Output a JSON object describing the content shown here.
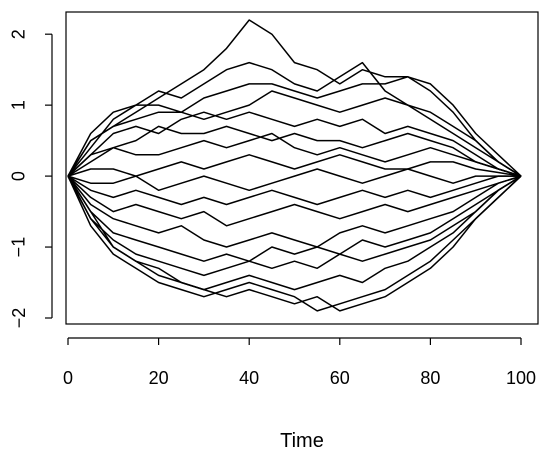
{
  "chart_data": {
    "type": "line",
    "title": "",
    "xlabel": "Time",
    "ylabel": "",
    "xlim": [
      0,
      100
    ],
    "ylim": [
      -2,
      2.2
    ],
    "x_ticks": [
      0,
      20,
      40,
      60,
      80,
      100
    ],
    "y_ticks": [
      -2,
      -1,
      0,
      1,
      2
    ],
    "grid": false,
    "line_color": "#000000",
    "x": [
      0,
      5,
      10,
      15,
      20,
      25,
      30,
      35,
      40,
      45,
      50,
      55,
      60,
      65,
      70,
      75,
      80,
      85,
      90,
      95,
      100
    ],
    "series": [
      {
        "values": [
          0,
          0.5,
          0.7,
          0.9,
          1.1,
          1.3,
          1.5,
          1.8,
          2.2,
          2.0,
          1.6,
          1.5,
          1.3,
          1.5,
          1.4,
          1.4,
          1.3,
          1.0,
          0.6,
          0.3,
          0
        ]
      },
      {
        "values": [
          0,
          0.6,
          0.9,
          1.0,
          1.2,
          1.1,
          1.3,
          1.5,
          1.6,
          1.5,
          1.3,
          1.2,
          1.4,
          1.6,
          1.2,
          1.0,
          0.9,
          0.7,
          0.5,
          0.2,
          0
        ]
      },
      {
        "values": [
          0,
          0.4,
          0.8,
          1.0,
          1.0,
          0.9,
          1.1,
          1.2,
          1.3,
          1.3,
          1.2,
          1.1,
          1.2,
          1.3,
          1.3,
          1.4,
          1.2,
          0.9,
          0.5,
          0.2,
          0
        ]
      },
      {
        "values": [
          0,
          0.5,
          0.7,
          0.8,
          0.9,
          0.9,
          0.8,
          0.9,
          1.0,
          1.2,
          1.1,
          1.0,
          0.9,
          1.0,
          1.1,
          1.0,
          0.8,
          0.6,
          0.4,
          0.2,
          0
        ]
      },
      {
        "values": [
          0,
          0.3,
          0.6,
          0.7,
          0.6,
          0.8,
          0.9,
          0.8,
          0.9,
          0.8,
          0.7,
          0.8,
          0.7,
          0.8,
          0.6,
          0.7,
          0.6,
          0.5,
          0.3,
          0.1,
          0
        ]
      },
      {
        "values": [
          0,
          0.2,
          0.4,
          0.5,
          0.7,
          0.6,
          0.6,
          0.7,
          0.6,
          0.5,
          0.6,
          0.5,
          0.5,
          0.4,
          0.5,
          0.6,
          0.5,
          0.4,
          0.2,
          0.1,
          0
        ]
      },
      {
        "values": [
          0,
          0.3,
          0.4,
          0.3,
          0.3,
          0.4,
          0.5,
          0.4,
          0.5,
          0.6,
          0.4,
          0.3,
          0.4,
          0.3,
          0.2,
          0.3,
          0.4,
          0.3,
          0.2,
          0.1,
          0
        ]
      },
      {
        "values": [
          0,
          0.1,
          0.1,
          0.0,
          0.1,
          0.2,
          0.1,
          0.2,
          0.3,
          0.2,
          0.1,
          0.2,
          0.3,
          0.2,
          0.1,
          0.1,
          0.2,
          0.2,
          0.1,
          0.05,
          0
        ]
      },
      {
        "values": [
          0,
          -0.1,
          -0.1,
          0.0,
          -0.2,
          -0.1,
          0.0,
          -0.1,
          -0.2,
          -0.1,
          0.0,
          0.1,
          0.0,
          -0.1,
          0.0,
          0.1,
          0.0,
          -0.1,
          0.0,
          0.0,
          0
        ]
      },
      {
        "values": [
          0,
          -0.2,
          -0.3,
          -0.2,
          -0.3,
          -0.4,
          -0.3,
          -0.4,
          -0.3,
          -0.2,
          -0.3,
          -0.4,
          -0.3,
          -0.2,
          -0.3,
          -0.2,
          -0.3,
          -0.2,
          -0.1,
          0.0,
          0
        ]
      },
      {
        "values": [
          0,
          -0.3,
          -0.5,
          -0.4,
          -0.5,
          -0.6,
          -0.5,
          -0.7,
          -0.6,
          -0.5,
          -0.4,
          -0.5,
          -0.6,
          -0.5,
          -0.4,
          -0.5,
          -0.4,
          -0.3,
          -0.2,
          -0.1,
          0
        ]
      },
      {
        "values": [
          0,
          -0.4,
          -0.6,
          -0.7,
          -0.8,
          -0.7,
          -0.9,
          -1.0,
          -0.9,
          -0.8,
          -0.9,
          -1.0,
          -0.8,
          -0.7,
          -0.8,
          -0.7,
          -0.6,
          -0.5,
          -0.3,
          -0.1,
          0
        ]
      },
      {
        "values": [
          0,
          -0.5,
          -0.8,
          -0.9,
          -1.0,
          -1.1,
          -1.2,
          -1.1,
          -1.2,
          -1.0,
          -1.1,
          -1.0,
          -1.1,
          -0.9,
          -1.0,
          -0.9,
          -0.8,
          -0.6,
          -0.4,
          -0.2,
          0
        ]
      },
      {
        "values": [
          0,
          -0.6,
          -0.9,
          -1.1,
          -1.2,
          -1.3,
          -1.4,
          -1.3,
          -1.2,
          -1.3,
          -1.2,
          -1.3,
          -1.1,
          -1.2,
          -1.1,
          -1.0,
          -0.9,
          -0.7,
          -0.5,
          -0.2,
          0
        ]
      },
      {
        "values": [
          0,
          -0.5,
          -1.0,
          -1.2,
          -1.4,
          -1.5,
          -1.6,
          -1.5,
          -1.4,
          -1.5,
          -1.6,
          -1.5,
          -1.4,
          -1.5,
          -1.3,
          -1.2,
          -1.0,
          -0.8,
          -0.5,
          -0.2,
          0
        ]
      },
      {
        "values": [
          0,
          -0.7,
          -1.1,
          -1.3,
          -1.5,
          -1.6,
          -1.7,
          -1.6,
          -1.5,
          -1.6,
          -1.7,
          -1.9,
          -1.8,
          -1.7,
          -1.6,
          -1.4,
          -1.2,
          -0.9,
          -0.6,
          -0.3,
          0
        ]
      },
      {
        "values": [
          0,
          -0.6,
          -1.0,
          -1.2,
          -1.3,
          -1.5,
          -1.6,
          -1.7,
          -1.6,
          -1.7,
          -1.8,
          -1.7,
          -1.9,
          -1.8,
          -1.7,
          -1.5,
          -1.3,
          -1.0,
          -0.6,
          -0.3,
          0
        ]
      }
    ]
  }
}
